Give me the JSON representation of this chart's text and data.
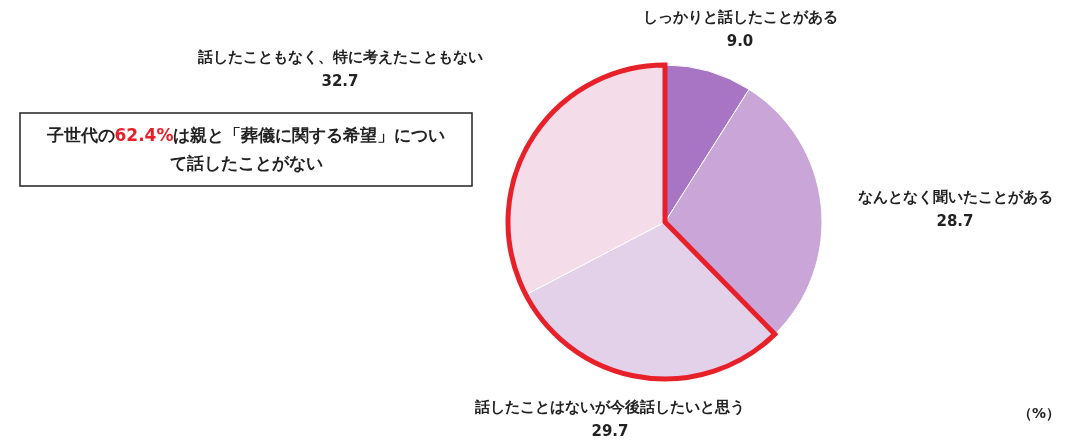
{
  "chart_data": {
    "type": "pie",
    "categories": [
      "しっかりと話したことがある",
      "なんとなく聞いたことがある",
      "話したことはないが今後話したいと思う",
      "話したこともなく、特に考えたこともない"
    ],
    "values": [
      9.0,
      28.7,
      29.7,
      32.7
    ],
    "colors": [
      "#a874c4",
      "#caa6d8",
      "#e3d1ea",
      "#f4dde8"
    ],
    "value_labels": [
      "9.0",
      "28.7",
      "29.7",
      "32.7"
    ],
    "annotations": [
      "子世代の62.4%は親と「葬儀に関する希望」について話したことがない",
      "（%）"
    ]
  }
}
